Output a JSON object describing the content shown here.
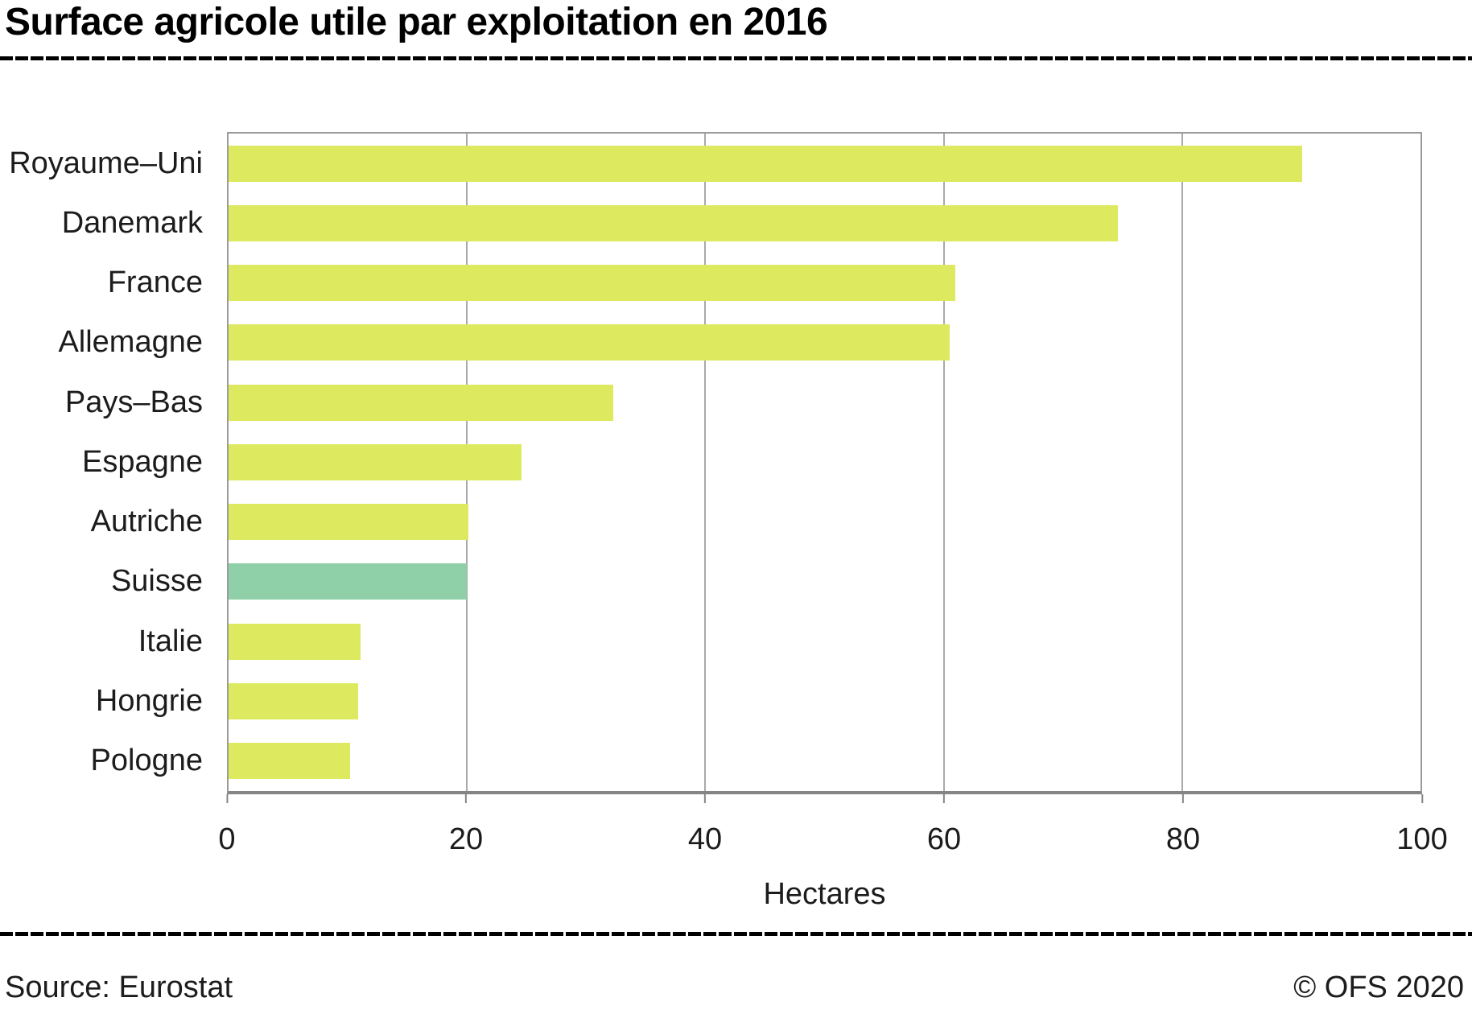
{
  "title": "Surface agricole utile par exploitation en 2016",
  "footer": {
    "source": "Source: Eurostat",
    "copyright": "© OFS 2020"
  },
  "colors": {
    "bar_default": "#dde95f",
    "bar_highlight": "#8fd0a9",
    "grid": "#a9a9a9",
    "axis": "#858585",
    "plot_border": "#9b9b9b",
    "text": "#1c1c1c",
    "rule": "#000000"
  },
  "chart_data": {
    "type": "bar",
    "orientation": "horizontal",
    "title": "Surface agricole utile par exploitation en 2016",
    "categories": [
      "Royaume–Uni",
      "Danemark",
      "France",
      "Allemagne",
      "Pays–Bas",
      "Espagne",
      "Autriche",
      "Suisse",
      "Italie",
      "Hongrie",
      "Pologne"
    ],
    "values": [
      90.1,
      74.6,
      61.0,
      60.5,
      32.3,
      24.6,
      20.1,
      20.0,
      11.1,
      10.9,
      10.2
    ],
    "highlight_category": "Suisse",
    "xlabel": "Hectares",
    "ylabel": "",
    "xlim": [
      0,
      100
    ],
    "xticks": [
      0,
      20,
      40,
      60,
      80,
      100
    ],
    "grid": true,
    "legend": false
  }
}
